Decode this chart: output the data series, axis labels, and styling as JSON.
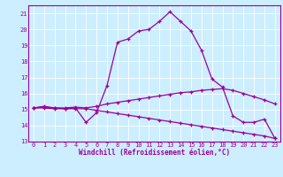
{
  "background_color": "#cceeff",
  "grid_color": "#aadddd",
  "line_color": "#990099",
  "spine_color": "#990099",
  "xlabel": "Windchill (Refroidissement éolien,°C)",
  "xlim": [
    -0.5,
    23.5
  ],
  "ylim": [
    13,
    21.5
  ],
  "yticks": [
    13,
    14,
    15,
    16,
    17,
    18,
    19,
    20,
    21
  ],
  "xticks": [
    0,
    1,
    2,
    3,
    4,
    5,
    6,
    7,
    8,
    9,
    10,
    11,
    12,
    13,
    14,
    15,
    16,
    17,
    18,
    19,
    20,
    21,
    22,
    23
  ],
  "line1_x": [
    0,
    1,
    2,
    3,
    4,
    5,
    6,
    7,
    8,
    9,
    10,
    11,
    12,
    13,
    14,
    15,
    16,
    17,
    18,
    19,
    20,
    21,
    22,
    23
  ],
  "line1_y": [
    15.1,
    15.2,
    15.1,
    15.05,
    15.1,
    14.2,
    14.8,
    16.5,
    19.2,
    19.4,
    19.9,
    20.0,
    20.5,
    21.1,
    20.5,
    19.9,
    18.7,
    16.9,
    16.4,
    14.6,
    14.2,
    14.2,
    14.4,
    13.2
  ],
  "line2_x": [
    0,
    1,
    2,
    3,
    4,
    5,
    6,
    7,
    8,
    9,
    10,
    11,
    12,
    13,
    14,
    15,
    16,
    17,
    18,
    19,
    20,
    21,
    22,
    23
  ],
  "line2_y": [
    15.1,
    15.15,
    15.1,
    15.1,
    15.15,
    15.1,
    15.2,
    15.35,
    15.45,
    15.55,
    15.65,
    15.75,
    15.85,
    15.95,
    16.05,
    16.1,
    16.2,
    16.25,
    16.3,
    16.2,
    16.0,
    15.8,
    15.6,
    15.35
  ],
  "line3_x": [
    0,
    1,
    2,
    3,
    4,
    5,
    6,
    7,
    8,
    9,
    10,
    11,
    12,
    13,
    14,
    15,
    16,
    17,
    18,
    19,
    20,
    21,
    22,
    23
  ],
  "line3_y": [
    15.1,
    15.1,
    15.05,
    15.05,
    15.05,
    15.05,
    14.95,
    14.85,
    14.75,
    14.65,
    14.55,
    14.45,
    14.35,
    14.25,
    14.15,
    14.05,
    13.95,
    13.85,
    13.75,
    13.65,
    13.55,
    13.45,
    13.35,
    13.2
  ],
  "tick_fontsize": 5,
  "xlabel_fontsize": 5.5,
  "linewidth": 0.9,
  "markersize": 3.5,
  "markeredgewidth": 0.9
}
